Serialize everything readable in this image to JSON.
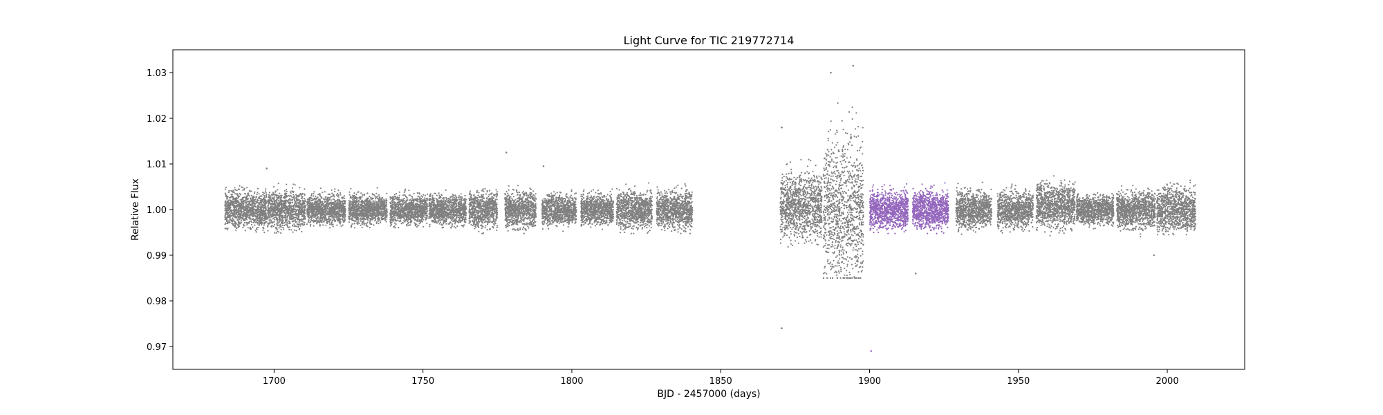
{
  "chart_data": {
    "type": "scatter",
    "title": "Light Curve for TIC 219772714",
    "xlabel": "BJD - 2457000 (days)",
    "ylabel": "Relative Flux",
    "xlim": [
      1666,
      2026
    ],
    "ylim": [
      0.965,
      1.035
    ],
    "x_ticks": [
      1700,
      1750,
      1800,
      1850,
      1900,
      1950,
      2000
    ],
    "y_ticks": [
      0.97,
      0.98,
      0.99,
      1.0,
      1.01,
      1.02,
      1.03
    ],
    "x_tick_labels": [
      "1700",
      "1750",
      "1800",
      "1850",
      "1900",
      "1950",
      "2000"
    ],
    "y_tick_labels": [
      "0.97",
      "0.98",
      "0.99",
      "1.00",
      "1.01",
      "1.02",
      "1.03"
    ],
    "grid": false,
    "series": [
      {
        "color": "#808080",
        "segments": [
          {
            "x": [
              1683.5,
              1697.5
            ],
            "center": 1.0,
            "low": 0.995,
            "high": 1.005
          },
          {
            "x": [
              1697.8,
              1710.5
            ],
            "center": 1.0,
            "low": 0.995,
            "high": 1.005
          },
          {
            "x": [
              1711.0,
              1724.0
            ],
            "center": 1.0,
            "low": 0.997,
            "high": 1.004
          },
          {
            "x": [
              1725.0,
              1738.0
            ],
            "center": 1.0,
            "low": 0.997,
            "high": 1.004
          },
          {
            "x": [
              1739.0,
              1751.5
            ],
            "center": 1.0,
            "low": 0.997,
            "high": 1.004
          },
          {
            "x": [
              1752.0,
              1764.5
            ],
            "center": 1.0,
            "low": 0.997,
            "high": 1.004
          },
          {
            "x": [
              1765.5,
              1775.0
            ],
            "center": 1.0,
            "low": 0.996,
            "high": 1.005
          },
          {
            "x": [
              1777.5,
              1788.0
            ],
            "center": 1.0,
            "low": 0.996,
            "high": 1.005
          },
          {
            "x": [
              1790.0,
              1801.5
            ],
            "center": 1.0,
            "low": 0.996,
            "high": 1.004
          },
          {
            "x": [
              1803.0,
              1814.0
            ],
            "center": 1.0,
            "low": 0.996,
            "high": 1.004
          },
          {
            "x": [
              1815.0,
              1827.0
            ],
            "center": 1.0,
            "low": 0.996,
            "high": 1.005
          },
          {
            "x": [
              1828.5,
              1840.5
            ],
            "center": 1.0,
            "low": 0.996,
            "high": 1.005
          },
          {
            "x": [
              1870.0,
              1884.0
            ],
            "center": 1.001,
            "low": 0.993,
            "high": 1.01
          },
          {
            "x": [
              1884.5,
              1898.0
            ],
            "center": 1.0,
            "low": 0.99,
            "high": 1.02
          },
          {
            "x": [
              1929.0,
              1941.0
            ],
            "center": 1.0,
            "low": 0.995,
            "high": 1.005
          },
          {
            "x": [
              1943.0,
              1955.0
            ],
            "center": 1.0,
            "low": 0.996,
            "high": 1.005
          },
          {
            "x": [
              1956.0,
              1969.0
            ],
            "center": 1.001,
            "low": 0.995,
            "high": 1.006
          },
          {
            "x": [
              1969.5,
              1982.0
            ],
            "center": 1.0,
            "low": 0.996,
            "high": 1.004
          },
          {
            "x": [
              1983.0,
              1996.0
            ],
            "center": 1.0,
            "low": 0.995,
            "high": 1.005
          },
          {
            "x": [
              1996.5,
              2009.5
            ],
            "center": 1.0,
            "low": 0.996,
            "high": 1.006
          }
        ]
      },
      {
        "color": "#9467bd",
        "segments": [
          {
            "x": [
              1900.0,
              1913.0
            ],
            "center": 1.0,
            "low": 0.996,
            "high": 1.005
          },
          {
            "x": [
              1914.5,
              1926.5
            ],
            "center": 1.0,
            "low": 0.996,
            "high": 1.005
          }
        ]
      }
    ],
    "notable_points": [
      {
        "x": 1870.5,
        "y": 0.974,
        "series": 0
      },
      {
        "x": 1870.5,
        "y": 1.018,
        "series": 0
      },
      {
        "x": 1887.0,
        "y": 1.03,
        "series": 0
      },
      {
        "x": 1894.5,
        "y": 1.0315,
        "series": 0
      },
      {
        "x": 1778.0,
        "y": 1.0125,
        "series": 0
      },
      {
        "x": 1697.5,
        "y": 1.009,
        "series": 0
      },
      {
        "x": 1790.5,
        "y": 1.0095,
        "series": 0
      },
      {
        "x": 1900.5,
        "y": 0.969,
        "series": 1
      },
      {
        "x": 1915.5,
        "y": 0.986,
        "series": 0
      },
      {
        "x": 1995.5,
        "y": 0.99,
        "series": 0
      }
    ]
  }
}
